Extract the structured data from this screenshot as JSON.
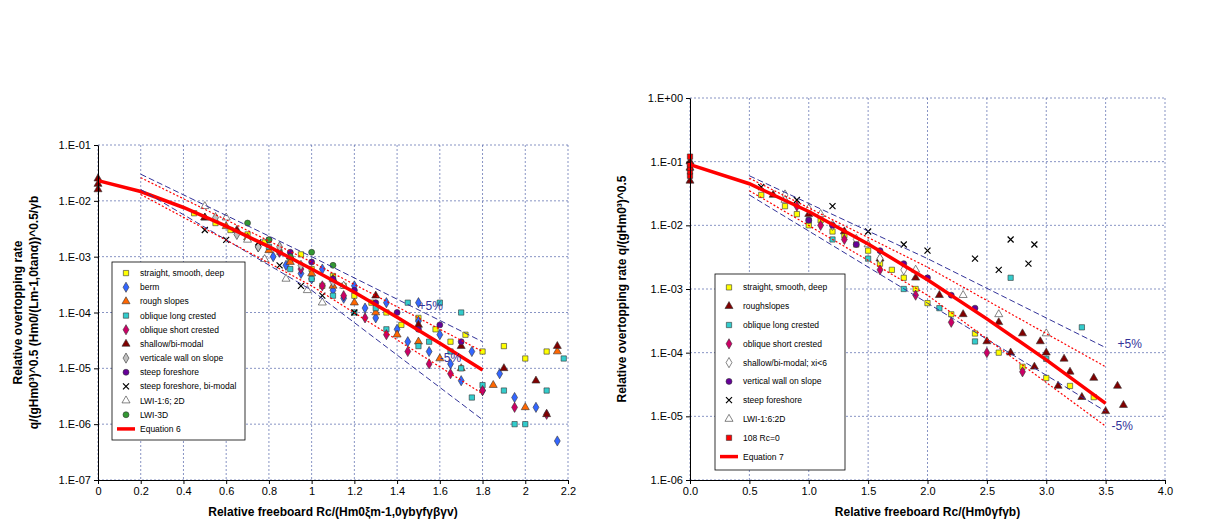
{
  "chart_data": [
    {
      "type": "scatter",
      "xlabel": "Relative freeboard Rc/(Hm0ξm-1,0γbγfγβγv)",
      "ylabel": [
        "Relative overtopping rate",
        "q/(gHm0³)^0.5 (Hm0/(Lm-1,0tanα))^0.5/γb"
      ],
      "log": "y",
      "grid": true,
      "legend": "lower left",
      "xlim": [
        0,
        2.2
      ],
      "xticks": [
        0,
        0.2,
        0.4,
        0.6,
        0.8,
        1,
        1.2,
        1.4,
        1.6,
        1.8,
        2,
        2.2
      ],
      "ylim": [
        1e-07,
        0.1
      ],
      "yticks": [
        {
          "value": 1e-07,
          "label": "1.E-07"
        },
        {
          "value": 1e-06,
          "label": "1.E-06"
        },
        {
          "value": 1e-05,
          "label": "1.E-05"
        },
        {
          "value": 0.0001,
          "label": "1.E-04"
        },
        {
          "value": 0.001,
          "label": "1.E-03"
        },
        {
          "value": 0.01,
          "label": "1.E-02"
        },
        {
          "value": 0.1,
          "label": "1.E-01"
        }
      ],
      "annotations": [
        {
          "text": "+5%",
          "x": 1.5,
          "y": 0.00011,
          "color": "#333399"
        },
        {
          "text": "-5%",
          "x": 1.6,
          "y": 1.3e-05,
          "color": "#333399"
        }
      ],
      "series": [
        {
          "name": "straight, smooth, deep",
          "color": "#ffff00",
          "marker": "square",
          "x": [
            0.45,
            0.55,
            0.62,
            0.7,
            0.78,
            0.85,
            0.9,
            0.95,
            1.0,
            1.05,
            1.1,
            1.15,
            1.2,
            1.28,
            1.35,
            1.42,
            1.5,
            1.58,
            1.65,
            1.72,
            1.8,
            1.9,
            2.0,
            2.1
          ],
          "values": [
            0.006,
            0.004,
            0.003,
            0.0025,
            0.0018,
            0.0012,
            0.0009,
            0.0011,
            0.0006,
            0.0003,
            0.00045,
            0.0003,
            0.0002,
            0.00015,
            0.0001,
            6e-05,
            8e-05,
            5e-05,
            3e-05,
            4e-05,
            2e-05,
            2.5e-05,
            1.5e-05,
            2e-05
          ]
        },
        {
          "name": "berm",
          "color": "#3366ff",
          "marker": "diamond",
          "x": [
            0.75,
            0.82,
            0.88,
            0.95,
            1.0,
            1.05,
            1.1,
            1.15,
            1.2,
            1.25,
            1.3,
            1.35,
            1.4,
            1.45,
            1.5,
            1.55,
            1.6,
            1.65,
            1.7,
            1.75,
            1.8,
            1.88,
            1.95,
            2.05,
            2.15,
            1.5
          ],
          "values": [
            0.0015,
            0.001,
            0.0007,
            0.0005,
            0.0004,
            0.0006,
            0.00025,
            0.00018,
            0.0003,
            0.00012,
            8e-05,
            0.00015,
            5e-05,
            3e-05,
            7e-05,
            2e-05,
            4e-05,
            1.2e-05,
            6e-06,
            2e-05,
            4e-06,
            8e-06,
            3e-06,
            2e-06,
            5e-07,
            0.00015
          ]
        },
        {
          "name": "rough slopes",
          "color": "#ff6600",
          "marker": "triangle",
          "x": [
            0.5,
            0.6,
            0.7,
            0.8,
            0.9,
            1.0,
            1.1,
            1.2,
            1.3,
            1.4,
            1.5,
            1.6,
            1.7,
            1.85,
            2.0,
            2.15
          ],
          "values": [
            0.005,
            0.0035,
            0.0022,
            0.0013,
            0.0008,
            0.0005,
            0.0003,
            0.00015,
            0.0001,
            4e-05,
            3e-05,
            1.5e-05,
            1e-05,
            5e-06,
            2e-06,
            2e-05
          ]
        },
        {
          "name": "oblique long crested",
          "color": "#33cccc",
          "marker": "square",
          "x": [
            0.8,
            0.9,
            1.0,
            1.1,
            1.2,
            1.3,
            1.35,
            1.45,
            1.5,
            1.55,
            1.6,
            1.65,
            1.7,
            1.75,
            1.8,
            1.9,
            1.95,
            2.0,
            2.1,
            2.18,
            1.7
          ],
          "values": [
            0.0015,
            0.0006,
            0.0004,
            0.0002,
            0.0001,
            0.00012,
            5e-05,
            0.00015,
            2.5e-05,
            3e-05,
            0.00015,
            2e-05,
            1e-05,
            3e-06,
            5e-06,
            4e-06,
            1e-06,
            1e-06,
            4e-06,
            1.5e-05,
            0.0001
          ]
        },
        {
          "name": "oblique short crested",
          "color": "#cc0066",
          "marker": "diamond",
          "x": [
            0.85,
            0.95,
            1.05,
            1.15,
            1.25,
            1.35,
            1.45,
            1.55,
            1.65,
            1.8,
            1.95,
            2.1
          ],
          "values": [
            0.0012,
            0.0006,
            0.0003,
            0.0002,
            8e-05,
            4e-05,
            2e-05,
            1.2e-05,
            8e-06,
            4e-06,
            2e-06,
            1.5e-06
          ]
        },
        {
          "name": "shallow/bi-modal",
          "color": "#800000",
          "marker": "triangle",
          "x": [
            0,
            0,
            0,
            0.5,
            0.65,
            0.9,
            1.1,
            1.3,
            1.5,
            1.7,
            1.9,
            2.05,
            2.15,
            2.1
          ],
          "values": [
            0.02,
            0.025,
            0.016,
            0.005,
            0.003,
            0.001,
            0.0004,
            0.0002,
            6e-05,
            2.5e-05,
            1e-05,
            6e-06,
            2.5e-05,
            1.5e-06
          ]
        },
        {
          "name": "verticale wall on slope",
          "color": "#c0c0c0",
          "marker": "diamond",
          "x": [
            0.55,
            0.65,
            0.75,
            0.85,
            0.95,
            1.1
          ],
          "values": [
            0.005,
            0.0025,
            0.0015,
            0.0015,
            0.0007,
            0.00035
          ]
        },
        {
          "name": "steep foreshore",
          "color": "#660099",
          "marker": "circle",
          "x": [
            0.8,
            0.9,
            1.0,
            1.1,
            1.2,
            1.3,
            1.4,
            1.5,
            1.6,
            1.7
          ],
          "values": [
            0.002,
            0.0012,
            0.0008,
            0.0004,
            0.00025,
            0.00015,
            0.0001,
            5e-05,
            6e-05,
            3e-05
          ]
        },
        {
          "name": "steep foreshore, bi-modal",
          "color": "#000000",
          "marker": "x",
          "x": [
            0.5,
            0.6,
            0.75,
            0.85,
            0.95,
            1.05,
            1.2
          ],
          "values": [
            0.003,
            0.002,
            0.0018,
            0.0007,
            0.0003,
            0.0002,
            0.0001
          ]
        },
        {
          "name": "LWI-1:6; 2D",
          "color": "#ffffff",
          "marker": "triangle",
          "x": [
            0.5,
            0.6,
            0.7,
            0.78,
            0.88,
            0.98,
            1.05,
            1.15
          ],
          "values": [
            0.008,
            0.005,
            0.002,
            0.0009,
            0.0004,
            0.00025,
            0.00015,
            0.0003
          ]
        },
        {
          "name": "LWI-3D",
          "color": "#339933",
          "marker": "circle",
          "x": [
            0.7,
            0.8,
            0.9,
            1.0,
            1.1
          ],
          "values": [
            0.004,
            0.002,
            0.001,
            0.0012,
            0.0007
          ]
        },
        {
          "name": "Equation 6",
          "type": "line",
          "color": "#ff0000",
          "line_style": "solid",
          "x": [
            0,
            0.2,
            0.4,
            0.6,
            0.8,
            1.0,
            1.2,
            1.4,
            1.6,
            1.8
          ],
          "values": [
            0.023,
            0.0147,
            0.0076,
            0.00353,
            0.00151,
            0.0006,
            0.00023,
            8.2e-05,
            2.8e-05,
            9.3e-06
          ]
        },
        {
          "type": "line",
          "color": "#333399",
          "line_style": "dashed",
          "x": [
            0.2,
            1.0,
            1.8
          ],
          "values": [
            0.03,
            0.001,
            3e-05
          ]
        },
        {
          "type": "line",
          "color": "#333399",
          "line_style": "dashed",
          "x": [
            0.2,
            1.0,
            1.8
          ],
          "values": [
            0.016,
            0.00025,
            1.2e-06
          ]
        },
        {
          "type": "line",
          "color": "#ff0000",
          "line_style": "dotted",
          "x": [
            0.2,
            1.0,
            1.8
          ],
          "values": [
            0.026,
            0.0008,
            2e-05
          ]
        },
        {
          "type": "line",
          "color": "#ff0000",
          "line_style": "dotted",
          "x": [
            0.2,
            1.0,
            1.8
          ],
          "values": [
            0.013,
            0.0003,
            3.5e-06
          ]
        }
      ]
    },
    {
      "type": "scatter",
      "xlabel": "Relative freeboard Rc/(Hm0γfγb)",
      "ylabel": "Relative overtopping rate q/(gHm0³)^0.5",
      "log": "y",
      "grid": true,
      "legend": "lower left",
      "xlim": [
        0,
        4
      ],
      "xticks": [
        {
          "value": 0,
          "label": "0.0"
        },
        {
          "value": 0.5,
          "label": "0.5"
        },
        {
          "value": 1,
          "label": "1.0"
        },
        {
          "value": 1.5,
          "label": "1.5"
        },
        {
          "value": 2,
          "label": "2.0"
        },
        {
          "value": 2.5,
          "label": "2.5"
        },
        {
          "value": 3,
          "label": "3.0"
        },
        {
          "value": 3.5,
          "label": "3.5"
        },
        {
          "value": 4,
          "label": "4.0"
        }
      ],
      "ylim": [
        1e-06,
        1
      ],
      "yticks": [
        {
          "value": 1e-06,
          "label": "1.E-06"
        },
        {
          "value": 1e-05,
          "label": "1.E-05"
        },
        {
          "value": 0.0001,
          "label": "1.E-04"
        },
        {
          "value": 0.001,
          "label": "1.E-03"
        },
        {
          "value": 0.01,
          "label": "1.E-02"
        },
        {
          "value": 0.1,
          "label": "1.E-01"
        },
        {
          "value": 1,
          "label": "1.E+00"
        }
      ],
      "annotations": [
        {
          "text": "+5%",
          "x": 3.6,
          "y": 0.00012,
          "color": "#333399"
        },
        {
          "text": "-5%",
          "x": 3.55,
          "y": 6e-06,
          "color": "#333399"
        }
      ],
      "series": [
        {
          "name": "straight, smooth, deep",
          "color": "#ffff00",
          "marker": "square",
          "x": [
            0.6,
            0.8,
            0.9,
            1.0,
            1.1,
            1.2,
            1.3,
            1.4,
            1.5,
            1.6,
            1.7,
            1.8,
            1.9,
            2.0,
            2.2,
            2.4,
            2.6,
            2.8,
            3.0,
            3.2,
            3.4
          ],
          "values": [
            0.03,
            0.02,
            0.015,
            0.01,
            0.012,
            0.008,
            0.007,
            0.005,
            0.004,
            0.0025,
            0.002,
            0.0015,
            0.001,
            0.0006,
            0.0004,
            0.0002,
            0.0001,
            6e-05,
            4e-05,
            3e-05,
            2e-05
          ]
        },
        {
          "name": "roughslopes",
          "color": "#800000",
          "marker": "triangle",
          "x": [
            0,
            0,
            0,
            0.7,
            1.0,
            1.3,
            1.6,
            1.9,
            2.1,
            2.3,
            2.5,
            2.6,
            2.7,
            2.8,
            2.9,
            3.0,
            3.1,
            3.2,
            3.3,
            3.4,
            3.5,
            3.6,
            3.65,
            2.95,
            3.15
          ],
          "values": [
            0.05,
            0.08,
            0.1,
            0.03,
            0.015,
            0.008,
            0.003,
            0.0015,
            0.0008,
            0.0004,
            0.00015,
            0.0003,
            0.0001,
            0.0002,
            6e-05,
            0.0001,
            3e-05,
            5e-05,
            2e-05,
            4e-05,
            1.2e-05,
            3e-05,
            1.5e-05,
            0.00015,
            8e-05
          ]
        },
        {
          "name": "oblique long crested",
          "color": "#33cccc",
          "marker": "square",
          "x": [
            1.0,
            1.2,
            1.5,
            1.8,
            2.1,
            2.4,
            2.7,
            3.0,
            3.3
          ],
          "values": [
            0.012,
            0.006,
            0.003,
            0.001,
            0.0005,
            0.00015,
            0.0015,
            8e-05,
            0.00025
          ]
        },
        {
          "name": "oblique short crested",
          "color": "#cc0066",
          "marker": "diamond",
          "x": [
            0.9,
            1.1,
            1.3,
            1.6,
            1.9,
            2.2,
            2.5,
            2.8
          ],
          "values": [
            0.02,
            0.01,
            0.006,
            0.002,
            0.0008,
            0.0003,
            0.0001,
            5e-05
          ]
        },
        {
          "name": "shallow/bi-modal; xi<6",
          "color": "#ffffff",
          "marker": "diamond",
          "x": [
            0.8,
            1.0,
            1.2,
            1.4,
            1.6,
            1.8
          ],
          "values": [
            0.03,
            0.018,
            0.01,
            0.006,
            0.003,
            0.002
          ]
        },
        {
          "name": "vertical wall on slope",
          "color": "#660099",
          "marker": "circle",
          "x": [
            1.0,
            1.2,
            1.4,
            1.6,
            1.8,
            2.0,
            2.2,
            2.4
          ],
          "values": [
            0.012,
            0.01,
            0.005,
            0.004,
            0.0025,
            0.0015,
            0.0008,
            0.0005
          ]
        },
        {
          "name": "steep foreshore",
          "color": "#000000",
          "marker": "x",
          "x": [
            0.6,
            0.9,
            1.2,
            1.5,
            1.8,
            2.0,
            2.4,
            2.6,
            2.7,
            2.9,
            2.85
          ],
          "values": [
            0.04,
            0.025,
            0.02,
            0.008,
            0.005,
            0.004,
            0.003,
            0.002,
            0.006,
            0.005,
            0.0025
          ]
        },
        {
          "name": "LWI-1:6:2D",
          "color": "#ffffff",
          "marker": "triangle",
          "x": [
            0.8,
            1.1,
            1.5,
            1.9,
            2.3,
            2.6,
            3.0
          ],
          "values": [
            0.025,
            0.015,
            0.005,
            0.002,
            0.0008,
            0.0004,
            0.0002
          ]
        },
        {
          "name": "108 Rc=0",
          "color": "#ff0000",
          "marker": "square",
          "x": [
            0,
            0,
            0,
            0,
            0
          ],
          "values": [
            0.06,
            0.07,
            0.08,
            0.09,
            0.12
          ]
        },
        {
          "name": "Equation 7",
          "type": "line",
          "color": "#ff0000",
          "line_style": "solid",
          "x": [
            0,
            0.5,
            1.0,
            1.5,
            2.0,
            2.5,
            3.0,
            3.5
          ],
          "values": [
            0.09,
            0.045,
            0.0165,
            0.0051,
            0.0014,
            0.00034,
            7.7e-05,
            1.6e-05
          ]
        },
        {
          "type": "line",
          "color": "#333399",
          "line_style": "dashed",
          "x": [
            0.5,
            2.0,
            3.5
          ],
          "values": [
            0.06,
            0.003,
            0.00012
          ]
        },
        {
          "type": "line",
          "color": "#333399",
          "line_style": "dashed",
          "x": [
            0.5,
            2.0,
            3.5
          ],
          "values": [
            0.03,
            0.0006,
            1.2e-05
          ]
        },
        {
          "type": "line",
          "color": "#ff0000",
          "line_style": "dotted",
          "x": [
            0.5,
            2.0,
            3.5
          ],
          "values": [
            0.055,
            0.0022,
            6e-05
          ]
        },
        {
          "type": "line",
          "color": "#ff0000",
          "line_style": "dotted",
          "x": [
            0.5,
            2.0,
            3.5
          ],
          "values": [
            0.035,
            0.0008,
            7e-06
          ]
        }
      ]
    }
  ]
}
